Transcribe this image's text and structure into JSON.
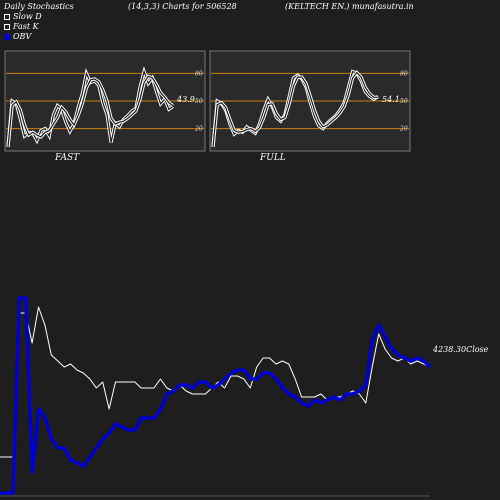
{
  "header": {
    "title": "Daily Stochastics",
    "params": "(14,3,3) Charts for 506528",
    "company": "(KELTECH EN.) munafasutra.in"
  },
  "legend": [
    {
      "label": "Slow  D",
      "color": "#ffffff",
      "style": "box"
    },
    {
      "label": "Fast K",
      "color": "#ffffff",
      "style": "box"
    },
    {
      "label": "OBV",
      "color": "#0000cc",
      "style": "fill"
    }
  ],
  "colors": {
    "background": "#1e1e1e",
    "panel_bg": "#2a2a2a",
    "band_line": "#c8820a",
    "obv": "#0000cc",
    "close": "#ffffff"
  },
  "chart_data": [
    {
      "type": "line",
      "panel": "FAST",
      "ylim": [
        0,
        100
      ],
      "levels": [
        20,
        50,
        80
      ],
      "level_labels": [
        "80",
        "50",
        "20"
      ],
      "last_value_label": "43.9",
      "series": [
        {
          "values": [
            0,
            50,
            47,
            30,
            12,
            16,
            15,
            7,
            18,
            20,
            12,
            35,
            45,
            41,
            27,
            17,
            25,
            43,
            58,
            80,
            70,
            72,
            67,
            48,
            35,
            5,
            26,
            22,
            30,
            34,
            39,
            42,
            65,
            82,
            69,
            75,
            60,
            47,
            52,
            41,
            44
          ]
        },
        {
          "values": [
            0,
            45,
            49,
            40,
            24,
            13,
            16,
            13,
            11,
            16,
            18,
            25,
            32,
            43,
            38,
            30,
            24,
            34,
            47,
            64,
            73,
            74,
            71,
            62,
            50,
            31,
            25,
            27,
            28,
            31,
            35,
            39,
            52,
            70,
            77,
            75,
            68,
            59,
            54,
            48,
            45
          ]
        }
      ]
    },
    {
      "type": "line",
      "panel": "FULL",
      "ylim": [
        0,
        100
      ],
      "levels": [
        20,
        50,
        80
      ],
      "level_labels": [
        "80",
        "50",
        "20"
      ],
      "last_value_label": "54.1",
      "series": [
        {
          "values": [
            0,
            50,
            47,
            40,
            25,
            14,
            18,
            16,
            22,
            18,
            15,
            25,
            40,
            52,
            44,
            32,
            28,
            35,
            55,
            75,
            78,
            74,
            65,
            48,
            33,
            23,
            20,
            26,
            30,
            34,
            40,
            48,
            65,
            82,
            80,
            72,
            60,
            55,
            52,
            55
          ]
        },
        {
          "values": [
            0,
            46,
            48,
            43,
            30,
            18,
            16,
            17,
            19,
            20,
            17,
            21,
            32,
            46,
            47,
            36,
            30,
            32,
            47,
            66,
            76,
            76,
            69,
            55,
            40,
            28,
            22,
            24,
            28,
            32,
            37,
            44,
            57,
            75,
            81,
            76,
            65,
            58,
            54,
            54
          ]
        }
      ]
    },
    {
      "type": "line",
      "panel": "OBV",
      "close_label": "4238.30Close",
      "series": [
        {
          "name": "Close",
          "color": "#ffffff",
          "values": [
            0.12,
            0.12,
            0.12,
            0.6,
            0.6,
            0.5,
            0.62,
            0.56,
            0.46,
            0.44,
            0.42,
            0.43,
            0.41,
            0.4,
            0.38,
            0.35,
            0.37,
            0.28,
            0.37,
            0.37,
            0.37,
            0.37,
            0.35,
            0.35,
            0.35,
            0.38,
            0.35,
            0.34,
            0.36,
            0.34,
            0.33,
            0.33,
            0.33,
            0.35,
            0.37,
            0.35,
            0.39,
            0.39,
            0.38,
            0.35,
            0.42,
            0.45,
            0.45,
            0.43,
            0.44,
            0.43,
            0.38,
            0.32,
            0.32,
            0.32,
            0.33,
            0.31,
            0.32,
            0.32,
            0.33,
            0.34,
            0.33,
            0.3,
            0.42,
            0.53,
            0.48,
            0.45,
            0.44,
            0.45,
            0.43,
            0.44,
            0.43,
            0.42
          ]
        },
        {
          "name": "OBV",
          "color": "#0000cc",
          "values": [
            0.0,
            0.0,
            0.0,
            0.65,
            0.65,
            0.07,
            0.28,
            0.25,
            0.18,
            0.15,
            0.15,
            0.11,
            0.1,
            0.09,
            0.12,
            0.15,
            0.18,
            0.2,
            0.23,
            0.22,
            0.21,
            0.21,
            0.25,
            0.25,
            0.25,
            0.28,
            0.33,
            0.34,
            0.36,
            0.36,
            0.35,
            0.37,
            0.37,
            0.35,
            0.36,
            0.38,
            0.4,
            0.41,
            0.41,
            0.38,
            0.38,
            0.4,
            0.4,
            0.38,
            0.35,
            0.33,
            0.32,
            0.3,
            0.29,
            0.31,
            0.3,
            0.31,
            0.32,
            0.31,
            0.33,
            0.33,
            0.34,
            0.36,
            0.51,
            0.56,
            0.52,
            0.48,
            0.46,
            0.45,
            0.44,
            0.45,
            0.44,
            0.42
          ]
        }
      ]
    }
  ]
}
